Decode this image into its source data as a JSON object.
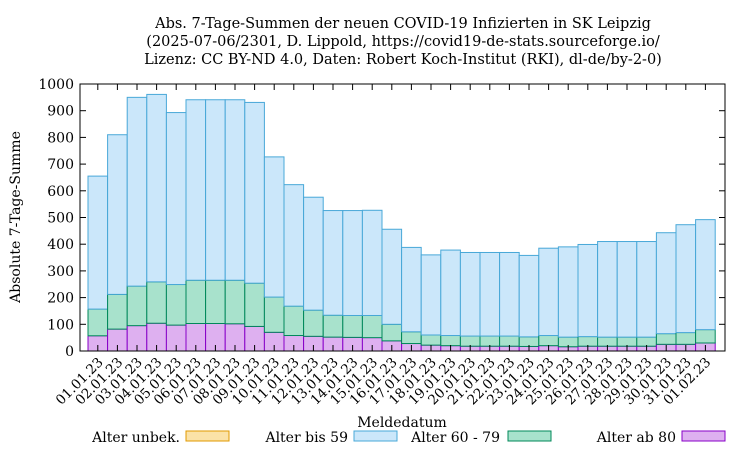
{
  "chart_data": {
    "type": "bar",
    "stacked": true,
    "title_lines": [
      "Abs. 7-Tage-Summen der neuen COVID-19 Infizierten in SK Leipzig",
      "(2025-07-06/2301, D. Lippold, https://covid19-de-stats.sourceforge.io/",
      "Lizenz: CC BY-ND 4.0, Daten: Robert Koch-Institut (RKI), dl-de/by-2-0)"
    ],
    "xlabel": "Meldedatum",
    "ylabel": "Absolute 7-Tage-Summe",
    "ylim": [
      0,
      1000
    ],
    "yticks": [
      0,
      100,
      200,
      300,
      400,
      500,
      600,
      700,
      800,
      900,
      1000
    ],
    "grid": false,
    "legend_position": "bottom",
    "categories": [
      "01.01.23",
      "02.01.23",
      "03.01.23",
      "04.01.23",
      "05.01.23",
      "06.01.23",
      "07.01.23",
      "08.01.23",
      "09.01.23",
      "10.01.23",
      "11.01.23",
      "12.01.23",
      "13.01.23",
      "14.01.23",
      "15.01.23",
      "16.01.23",
      "17.01.23",
      "18.01.23",
      "19.01.23",
      "20.01.23",
      "21.01.23",
      "22.01.23",
      "23.01.23",
      "24.01.23",
      "25.01.23",
      "26.01.23",
      "27.01.23",
      "28.01.23",
      "29.01.23",
      "30.01.23",
      "31.01.23",
      "01.02.23"
    ],
    "series": [
      {
        "name": "Alter ab 80",
        "fill": "#deb0f0",
        "stroke": "#8800c8",
        "values": [
          57,
          82,
          95,
          104,
          97,
          103,
          103,
          102,
          92,
          70,
          58,
          55,
          52,
          51,
          50,
          38,
          28,
          22,
          20,
          18,
          18,
          18,
          17,
          20,
          16,
          18,
          18,
          18,
          18,
          25,
          25,
          30
        ]
      },
      {
        "name": "Alter 60 - 79",
        "fill": "#a8e2cc",
        "stroke": "#00885a",
        "values": [
          100,
          130,
          148,
          155,
          152,
          162,
          162,
          163,
          162,
          132,
          110,
          98,
          82,
          82,
          83,
          62,
          44,
          38,
          38,
          38,
          38,
          38,
          36,
          38,
          36,
          36,
          34,
          34,
          34,
          40,
          44,
          50
        ]
      },
      {
        "name": "Alter bis 59",
        "fill": "#cbe7fa",
        "stroke": "#48a8d8",
        "values": [
          498,
          598,
          707,
          702,
          644,
          676,
          676,
          676,
          677,
          525,
          455,
          423,
          392,
          393,
          394,
          356,
          316,
          300,
          320,
          313,
          313,
          313,
          305,
          327,
          338,
          345,
          358,
          358,
          358,
          378,
          404,
          412
        ]
      },
      {
        "name": "Alter unbek.",
        "fill": "#fbe2a8",
        "stroke": "#e09a00",
        "values": [
          0,
          0,
          0,
          0,
          0,
          0,
          0,
          0,
          0,
          0,
          0,
          0,
          0,
          0,
          0,
          0,
          0,
          0,
          0,
          0,
          0,
          0,
          0,
          0,
          0,
          0,
          0,
          0,
          0,
          0,
          0,
          0
        ]
      }
    ],
    "legend": [
      "Alter unbek.",
      "Alter bis 59",
      "Alter 60 - 79",
      "Alter ab 80"
    ]
  }
}
